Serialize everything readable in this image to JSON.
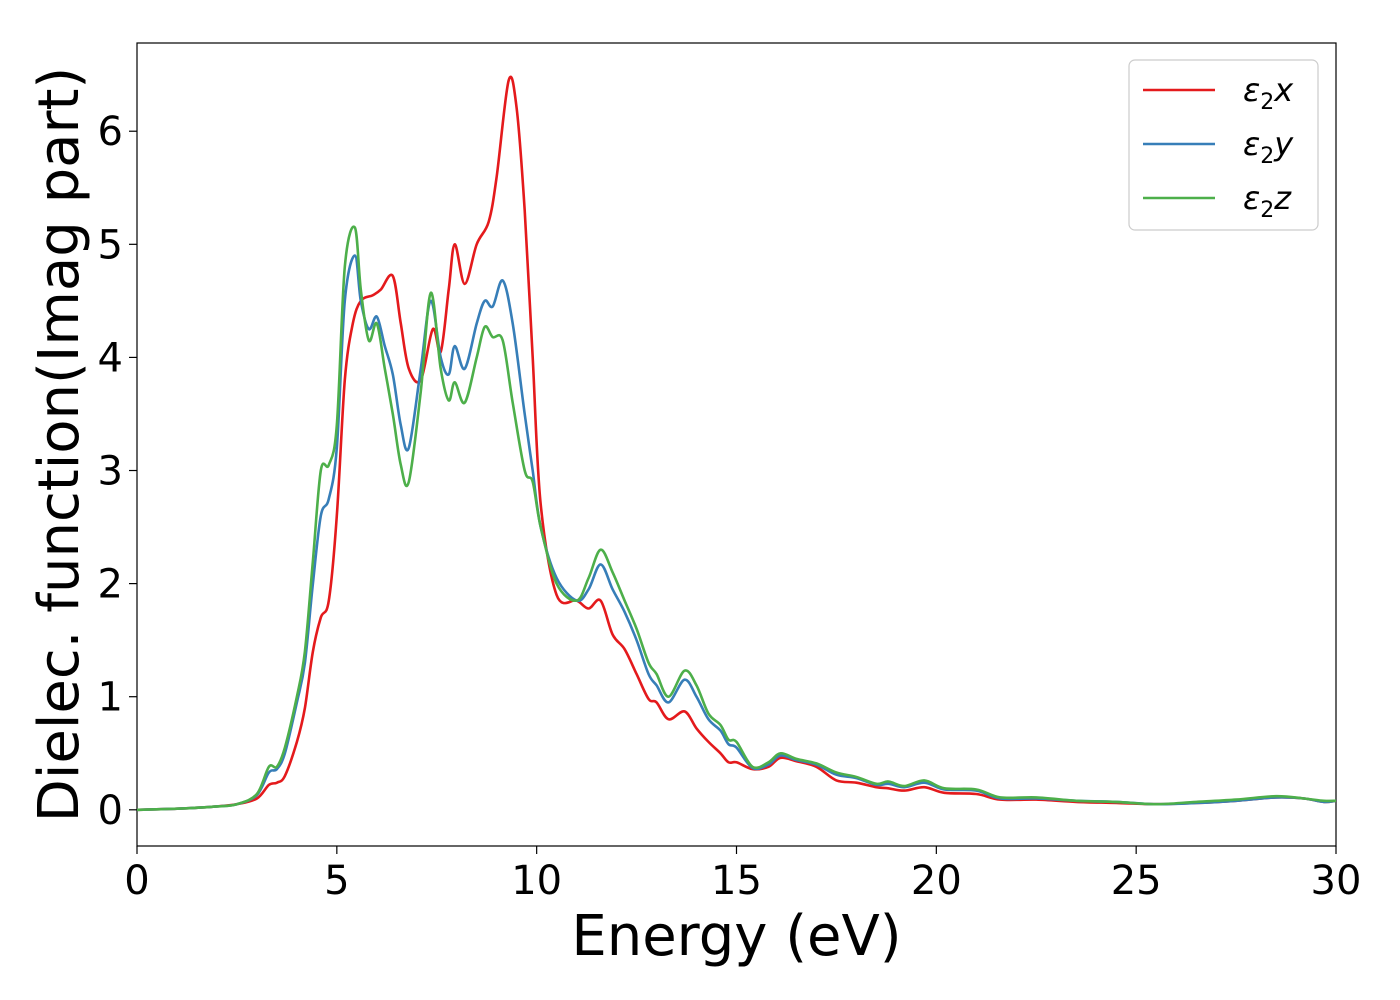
{
  "chart_data": {
    "type": "line",
    "title": "",
    "xlabel": "Energy (eV)",
    "ylabel": "Dielec. function(Imag part)",
    "xlim": [
      0,
      30
    ],
    "ylim": [
      -0.32,
      6.78
    ],
    "xticks": [
      0,
      5,
      10,
      15,
      20,
      25,
      30
    ],
    "yticks": [
      0,
      1,
      2,
      3,
      4,
      5,
      6
    ],
    "grid": false,
    "legend_position": "top-right",
    "series": [
      {
        "name": "ε₂x",
        "legend_base": "ε",
        "legend_sub": "2",
        "legend_suffix": "x",
        "color": "#e41a1c",
        "points": [
          [
            0,
            0.0
          ],
          [
            1,
            0.01
          ],
          [
            2,
            0.03
          ],
          [
            2.5,
            0.05
          ],
          [
            3,
            0.1
          ],
          [
            3.3,
            0.22
          ],
          [
            3.5,
            0.24
          ],
          [
            3.7,
            0.3
          ],
          [
            4,
            0.6
          ],
          [
            4.2,
            0.9
          ],
          [
            4.4,
            1.4
          ],
          [
            4.6,
            1.7
          ],
          [
            4.8,
            1.85
          ],
          [
            5,
            2.6
          ],
          [
            5.2,
            3.8
          ],
          [
            5.4,
            4.3
          ],
          [
            5.6,
            4.5
          ],
          [
            5.9,
            4.55
          ],
          [
            6.1,
            4.6
          ],
          [
            6.4,
            4.72
          ],
          [
            6.6,
            4.3
          ],
          [
            6.8,
            3.9
          ],
          [
            7.1,
            3.8
          ],
          [
            7.4,
            4.25
          ],
          [
            7.6,
            4.05
          ],
          [
            7.8,
            4.6
          ],
          [
            7.95,
            5.0
          ],
          [
            8.2,
            4.65
          ],
          [
            8.5,
            5.0
          ],
          [
            8.8,
            5.2
          ],
          [
            9.0,
            5.6
          ],
          [
            9.3,
            6.45
          ],
          [
            9.5,
            6.2
          ],
          [
            9.7,
            5.3
          ],
          [
            9.9,
            4.0
          ],
          [
            10.1,
            2.7
          ],
          [
            10.5,
            1.9
          ],
          [
            11,
            1.85
          ],
          [
            11.3,
            1.78
          ],
          [
            11.6,
            1.85
          ],
          [
            11.9,
            1.55
          ],
          [
            12.2,
            1.42
          ],
          [
            12.5,
            1.2
          ],
          [
            12.8,
            0.98
          ],
          [
            13.0,
            0.95
          ],
          [
            13.3,
            0.8
          ],
          [
            13.7,
            0.87
          ],
          [
            14.0,
            0.72
          ],
          [
            14.3,
            0.6
          ],
          [
            14.6,
            0.5
          ],
          [
            14.8,
            0.42
          ],
          [
            15.0,
            0.42
          ],
          [
            15.4,
            0.36
          ],
          [
            15.8,
            0.38
          ],
          [
            16.1,
            0.46
          ],
          [
            16.5,
            0.43
          ],
          [
            17,
            0.38
          ],
          [
            17.5,
            0.26
          ],
          [
            18,
            0.24
          ],
          [
            18.5,
            0.2
          ],
          [
            18.8,
            0.19
          ],
          [
            19.2,
            0.17
          ],
          [
            19.7,
            0.2
          ],
          [
            20.2,
            0.15
          ],
          [
            21,
            0.14
          ],
          [
            21.6,
            0.09
          ],
          [
            22.5,
            0.09
          ],
          [
            23.5,
            0.07
          ],
          [
            24.5,
            0.06
          ],
          [
            25.5,
            0.05
          ],
          [
            26.5,
            0.06
          ],
          [
            27.5,
            0.08
          ],
          [
            28.5,
            0.11
          ],
          [
            29.2,
            0.1
          ],
          [
            29.7,
            0.07
          ],
          [
            30,
            0.08
          ]
        ]
      },
      {
        "name": "ε₂y",
        "legend_base": "ε",
        "legend_sub": "2",
        "legend_suffix": "y",
        "color": "#377eb8",
        "points": [
          [
            0,
            0.0
          ],
          [
            1,
            0.01
          ],
          [
            2,
            0.03
          ],
          [
            2.5,
            0.05
          ],
          [
            3,
            0.13
          ],
          [
            3.3,
            0.33
          ],
          [
            3.5,
            0.36
          ],
          [
            3.7,
            0.5
          ],
          [
            4,
            0.95
          ],
          [
            4.2,
            1.3
          ],
          [
            4.4,
            2.0
          ],
          [
            4.6,
            2.6
          ],
          [
            4.8,
            2.75
          ],
          [
            5,
            3.2
          ],
          [
            5.2,
            4.5
          ],
          [
            5.45,
            4.9
          ],
          [
            5.6,
            4.5
          ],
          [
            5.8,
            4.25
          ],
          [
            6.0,
            4.36
          ],
          [
            6.2,
            4.1
          ],
          [
            6.4,
            3.85
          ],
          [
            6.6,
            3.4
          ],
          [
            6.8,
            3.2
          ],
          [
            7.1,
            3.9
          ],
          [
            7.35,
            4.5
          ],
          [
            7.6,
            4.0
          ],
          [
            7.8,
            3.85
          ],
          [
            7.95,
            4.1
          ],
          [
            8.2,
            3.9
          ],
          [
            8.5,
            4.3
          ],
          [
            8.7,
            4.5
          ],
          [
            8.9,
            4.45
          ],
          [
            9.15,
            4.68
          ],
          [
            9.4,
            4.3
          ],
          [
            9.7,
            3.5
          ],
          [
            9.9,
            3.0
          ],
          [
            10.1,
            2.5
          ],
          [
            10.5,
            2.05
          ],
          [
            11,
            1.85
          ],
          [
            11.3,
            1.95
          ],
          [
            11.6,
            2.17
          ],
          [
            11.9,
            1.95
          ],
          [
            12.2,
            1.75
          ],
          [
            12.5,
            1.5
          ],
          [
            12.8,
            1.2
          ],
          [
            13.0,
            1.1
          ],
          [
            13.3,
            0.95
          ],
          [
            13.7,
            1.15
          ],
          [
            14.0,
            1.0
          ],
          [
            14.3,
            0.8
          ],
          [
            14.6,
            0.7
          ],
          [
            14.8,
            0.58
          ],
          [
            15.0,
            0.55
          ],
          [
            15.4,
            0.37
          ],
          [
            15.8,
            0.4
          ],
          [
            16.1,
            0.48
          ],
          [
            16.5,
            0.44
          ],
          [
            17,
            0.4
          ],
          [
            17.5,
            0.31
          ],
          [
            18,
            0.28
          ],
          [
            18.5,
            0.22
          ],
          [
            18.8,
            0.23
          ],
          [
            19.2,
            0.2
          ],
          [
            19.7,
            0.24
          ],
          [
            20.2,
            0.18
          ],
          [
            21,
            0.17
          ],
          [
            21.6,
            0.1
          ],
          [
            22.5,
            0.1
          ],
          [
            23.5,
            0.08
          ],
          [
            24.5,
            0.07
          ],
          [
            25.5,
            0.05
          ],
          [
            26.5,
            0.06
          ],
          [
            27.5,
            0.08
          ],
          [
            28.5,
            0.11
          ],
          [
            29.2,
            0.1
          ],
          [
            29.7,
            0.07
          ],
          [
            30,
            0.08
          ]
        ]
      },
      {
        "name": "ε₂z",
        "legend_base": "ε",
        "legend_sub": "2",
        "legend_suffix": "z",
        "color": "#4daf4a",
        "points": [
          [
            0,
            0.0
          ],
          [
            1,
            0.01
          ],
          [
            2,
            0.03
          ],
          [
            2.5,
            0.05
          ],
          [
            3,
            0.14
          ],
          [
            3.3,
            0.38
          ],
          [
            3.5,
            0.38
          ],
          [
            3.7,
            0.55
          ],
          [
            4,
            1.0
          ],
          [
            4.2,
            1.4
          ],
          [
            4.4,
            2.2
          ],
          [
            4.6,
            3.0
          ],
          [
            4.8,
            3.05
          ],
          [
            5,
            3.4
          ],
          [
            5.2,
            4.8
          ],
          [
            5.45,
            5.15
          ],
          [
            5.6,
            4.6
          ],
          [
            5.8,
            4.15
          ],
          [
            6.0,
            4.3
          ],
          [
            6.2,
            3.9
          ],
          [
            6.4,
            3.5
          ],
          [
            6.6,
            3.05
          ],
          [
            6.8,
            2.9
          ],
          [
            7.1,
            3.7
          ],
          [
            7.35,
            4.57
          ],
          [
            7.6,
            3.9
          ],
          [
            7.8,
            3.62
          ],
          [
            7.95,
            3.78
          ],
          [
            8.2,
            3.6
          ],
          [
            8.5,
            4.0
          ],
          [
            8.7,
            4.27
          ],
          [
            8.9,
            4.18
          ],
          [
            9.15,
            4.15
          ],
          [
            9.4,
            3.6
          ],
          [
            9.7,
            3.0
          ],
          [
            9.9,
            2.9
          ],
          [
            10.1,
            2.5
          ],
          [
            10.5,
            2.0
          ],
          [
            11,
            1.85
          ],
          [
            11.3,
            2.05
          ],
          [
            11.6,
            2.3
          ],
          [
            11.9,
            2.1
          ],
          [
            12.2,
            1.85
          ],
          [
            12.5,
            1.6
          ],
          [
            12.8,
            1.3
          ],
          [
            13.0,
            1.2
          ],
          [
            13.3,
            1.0
          ],
          [
            13.7,
            1.23
          ],
          [
            14.0,
            1.1
          ],
          [
            14.3,
            0.85
          ],
          [
            14.6,
            0.75
          ],
          [
            14.8,
            0.62
          ],
          [
            15.0,
            0.6
          ],
          [
            15.4,
            0.38
          ],
          [
            15.8,
            0.42
          ],
          [
            16.1,
            0.5
          ],
          [
            16.5,
            0.45
          ],
          [
            17,
            0.41
          ],
          [
            17.5,
            0.33
          ],
          [
            18,
            0.29
          ],
          [
            18.5,
            0.23
          ],
          [
            18.8,
            0.25
          ],
          [
            19.2,
            0.21
          ],
          [
            19.7,
            0.26
          ],
          [
            20.2,
            0.19
          ],
          [
            21,
            0.18
          ],
          [
            21.6,
            0.11
          ],
          [
            22.5,
            0.11
          ],
          [
            23.5,
            0.08
          ],
          [
            24.5,
            0.07
          ],
          [
            25.5,
            0.05
          ],
          [
            26.5,
            0.07
          ],
          [
            27.5,
            0.09
          ],
          [
            28.5,
            0.12
          ],
          [
            29.2,
            0.1
          ],
          [
            29.7,
            0.08
          ],
          [
            30,
            0.08
          ]
        ]
      }
    ]
  }
}
